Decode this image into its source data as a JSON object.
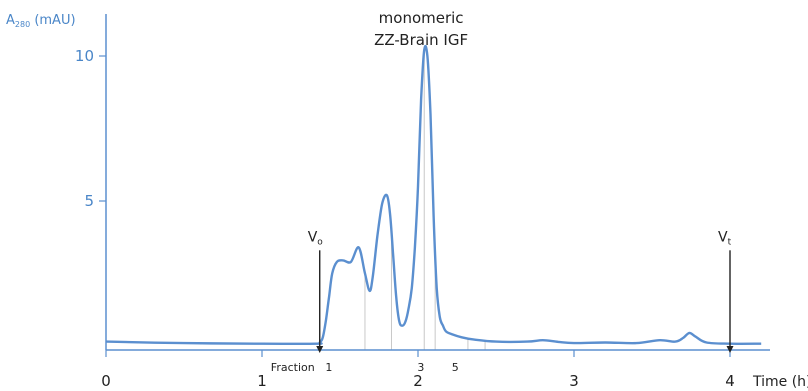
{
  "chart_data": {
    "type": "line",
    "title": "",
    "ylabel": {
      "main": "A",
      "sub": "280",
      "unit": " (mAU)"
    },
    "xlabel": "Time (h)",
    "xlim": [
      0,
      4.2
    ],
    "ylim": [
      0,
      10.5
    ],
    "x_ticks": [
      0,
      1,
      2,
      3,
      4
    ],
    "x_tick_labels": [
      "0",
      "1",
      "2",
      "3",
      "4"
    ],
    "y_ticks": [
      5,
      10
    ],
    "y_tick_labels": [
      "5",
      "10"
    ],
    "grid": false,
    "colors": {
      "trace": "#5b8fcf",
      "axis": "#5b8fcf",
      "marker": "#222222",
      "fraction_line": "#c8c8c8"
    },
    "series": [
      {
        "x": [
          0,
          0.5,
          1.0,
          1.35,
          1.37,
          1.39,
          1.41,
          1.43,
          1.45,
          1.48,
          1.52,
          1.57,
          1.62,
          1.66,
          1.69,
          1.71,
          1.74,
          1.77,
          1.8,
          1.82,
          1.84,
          1.86,
          1.88,
          1.9,
          1.92,
          1.94,
          1.96,
          1.98,
          2.0,
          2.02,
          2.04,
          2.06,
          2.08,
          2.1,
          2.12,
          2.14,
          2.16,
          2.18,
          2.22,
          2.28,
          2.36,
          2.5,
          2.7,
          2.8,
          2.9,
          3.0,
          3.2,
          3.4,
          3.55,
          3.65,
          3.7,
          3.74,
          3.78,
          3.85,
          4.0,
          4.2
        ],
        "y": [
          0.15,
          0.1,
          0.08,
          0.08,
          0.12,
          0.3,
          0.9,
          1.7,
          2.5,
          2.9,
          2.95,
          2.9,
          3.4,
          2.5,
          1.9,
          2.4,
          3.8,
          4.9,
          5.2,
          4.6,
          3.2,
          1.7,
          0.85,
          0.7,
          0.85,
          1.3,
          2.0,
          3.4,
          5.5,
          8.5,
          10.2,
          10.0,
          8.0,
          4.5,
          2.0,
          1.0,
          0.7,
          0.5,
          0.4,
          0.3,
          0.22,
          0.15,
          0.15,
          0.2,
          0.14,
          0.1,
          0.12,
          0.1,
          0.2,
          0.15,
          0.28,
          0.45,
          0.32,
          0.12,
          0.08,
          0.08
        ]
      }
    ],
    "markers": [
      {
        "label": "V",
        "sub": "o",
        "x": 1.37,
        "y_top": 3.3
      },
      {
        "label": "V",
        "sub": "t",
        "x": 4.0,
        "y_top": 3.3
      }
    ],
    "fractions": {
      "label": "Fraction",
      "boundaries": [
        1.37,
        1.66,
        1.83,
        2.04,
        2.11,
        2.32,
        2.43
      ],
      "numbers": [
        {
          "text": "1",
          "x": 1.39
        },
        {
          "text": "3",
          "x": 1.98
        },
        {
          "text": "5",
          "x": 2.2
        }
      ]
    },
    "annotations": [
      {
        "lines": [
          "monomeric",
          "ZZ-Brain IGF"
        ],
        "x": 2.02,
        "y": 10.5
      }
    ]
  }
}
